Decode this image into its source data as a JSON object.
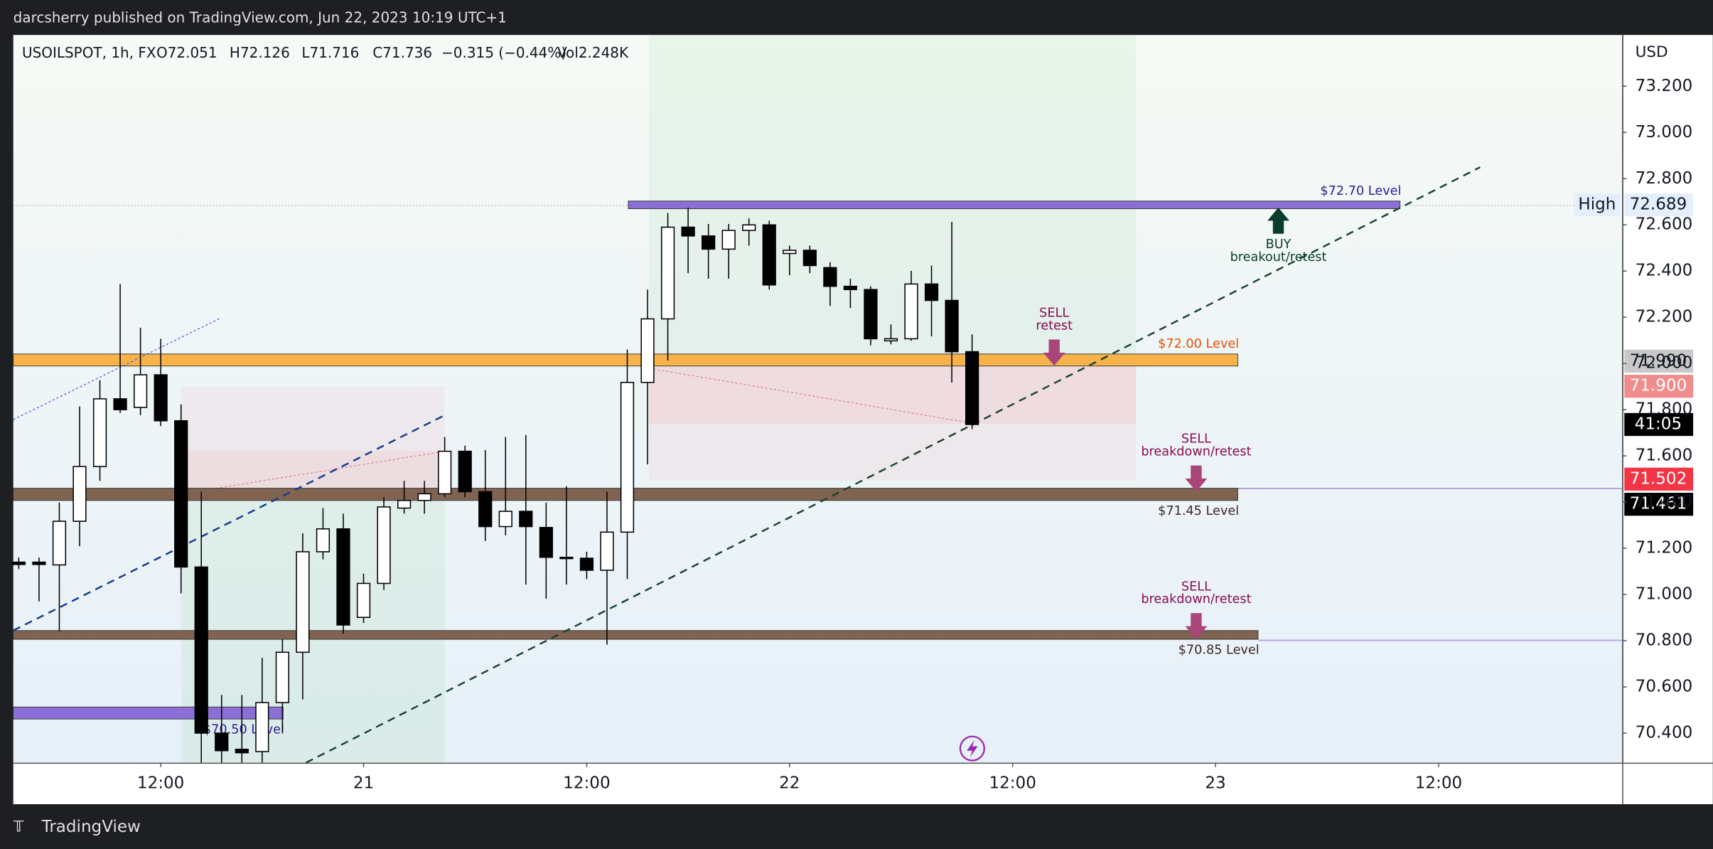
{
  "header": {
    "published": "darcsherry published on TradingView.com, Jun 22, 2023 10:19 UTC+1",
    "brand": "TradingView"
  },
  "chart_data": {
    "type": "candlestick",
    "symbol": "USOILSPOT, 1h, FX",
    "ohlc_legend": [
      "O72.051",
      "H72.126",
      "L71.716",
      "C71.736",
      "−0.315 (−0.44%)",
      "Vol2.248K"
    ],
    "currency": "USD",
    "x": [
      0,
      1,
      2,
      3,
      4,
      5,
      6,
      7,
      8,
      9,
      10,
      11,
      12,
      13,
      14,
      15,
      16,
      17,
      18,
      19,
      20,
      21,
      22,
      23,
      24,
      25,
      26,
      27,
      28,
      29,
      30,
      31,
      32,
      33,
      34,
      35,
      36,
      37,
      38,
      39,
      40,
      41,
      42,
      43,
      44,
      45,
      46,
      47
    ],
    "open": [
      71.14,
      71.14,
      71.128,
      71.317,
      71.554,
      71.847,
      71.81,
      71.951,
      71.752,
      71.119,
      70.4,
      70.33,
      70.32,
      70.532,
      70.75,
      71.185,
      71.284,
      70.901,
      71.048,
      71.374,
      71.407,
      71.436,
      71.62,
      71.445,
      71.294,
      71.36,
      71.29,
      71.161,
      71.157,
      71.105,
      71.27,
      71.918,
      72.193,
      72.59,
      72.552,
      72.495,
      72.576,
      72.6,
      72.476,
      72.49,
      72.415,
      72.334,
      72.32,
      72.098,
      72.107,
      72.344,
      72.273,
      72.051
    ],
    "high": [
      71.16,
      71.16,
      71.398,
      71.814,
      71.928,
      72.344,
      72.155,
      72.107,
      71.823,
      71.445,
      70.565,
      70.565,
      70.726,
      70.806,
      71.265,
      71.374,
      71.35,
      71.09,
      71.421,
      71.492,
      71.492,
      71.682,
      71.644,
      71.625,
      71.682,
      71.691,
      71.398,
      71.469,
      71.185,
      71.445,
      72.06,
      72.32,
      72.651,
      72.675,
      72.604,
      72.604,
      72.628,
      72.618,
      72.51,
      72.51,
      72.438,
      72.367,
      72.334,
      72.169,
      72.401,
      72.424,
      72.613,
      72.126
    ],
    "low": [
      71.11,
      70.97,
      70.84,
      71.209,
      71.492,
      71.786,
      71.776,
      71.729,
      71.005,
      70.272,
      70.272,
      70.272,
      70.272,
      70.404,
      70.546,
      71.152,
      70.83,
      70.877,
      71.02,
      71.35,
      71.35,
      71.421,
      71.421,
      71.232,
      71.256,
      71.043,
      70.982,
      71.043,
      71.067,
      70.783,
      71.067,
      71.563,
      72.013,
      72.391,
      72.367,
      72.367,
      72.51,
      72.32,
      72.382,
      72.391,
      72.249,
      72.24,
      72.079,
      72.083,
      72.098,
      72.117,
      71.918,
      71.716
    ],
    "close": [
      71.13,
      71.13,
      71.317,
      71.554,
      71.847,
      71.8,
      71.951,
      71.752,
      71.119,
      70.4,
      70.324,
      70.315,
      70.532,
      70.75,
      71.185,
      71.284,
      70.868,
      71.048,
      71.379,
      71.407,
      71.436,
      71.62,
      71.445,
      71.294,
      71.36,
      71.294,
      71.161,
      71.157,
      71.105,
      71.27,
      71.918,
      72.193,
      72.59,
      72.552,
      72.495,
      72.576,
      72.6,
      72.34,
      72.49,
      72.424,
      72.334,
      72.32,
      72.107,
      72.107,
      72.344,
      72.273,
      72.051,
      71.736
    ],
    "up_color": "#ffffff",
    "down_color": "#000000",
    "xlim": [
      -0.27,
      79.05
    ],
    "xticks": [
      {
        "value": 7,
        "label": "12:00"
      },
      {
        "value": 17,
        "label": "21"
      },
      {
        "value": 28,
        "label": "12:00"
      },
      {
        "value": 38,
        "label": "22"
      },
      {
        "value": 49,
        "label": "12:00"
      },
      {
        "value": 59,
        "label": "23"
      },
      {
        "value": 70,
        "label": "12:00"
      }
    ],
    "ylim": [
      70.272,
      73.422
    ],
    "yticks": [
      {
        "value": 70.4,
        "label": "70.400"
      },
      {
        "value": 70.6,
        "label": "70.600"
      },
      {
        "value": 70.8,
        "label": "70.800"
      },
      {
        "value": 71.0,
        "label": "71.000"
      },
      {
        "value": 71.2,
        "label": "71.200"
      },
      {
        "value": 71.4,
        "label": "71.400"
      },
      {
        "value": 71.6,
        "label": "71.600"
      },
      {
        "value": 71.8,
        "label": "71.800"
      },
      {
        "value": 72.0,
        "label": "72.000"
      },
      {
        "value": 72.2,
        "label": "72.200"
      },
      {
        "value": 72.4,
        "label": "72.400"
      },
      {
        "value": 72.6,
        "label": "72.600"
      },
      {
        "value": 72.8,
        "label": "72.800"
      },
      {
        "value": 73.0,
        "label": "73.000"
      },
      {
        "value": 73.2,
        "label": "73.200"
      }
    ],
    "levels": [
      {
        "label": "$72.70 Level",
        "top": 72.703,
        "bottom": 72.67,
        "from": 30.05,
        "to": 68.1,
        "color": "#8c6fd6",
        "label_color": "#311b92",
        "label_pos": "above"
      },
      {
        "label": "$72.00 Level",
        "top": 72.041,
        "bottom": 71.989,
        "from": -0.27,
        "to": 60.1,
        "color": "#f8b24a",
        "label_color": "#e65100",
        "label_pos": "above"
      },
      {
        "label": "$71.45 Level",
        "top": 71.46,
        "bottom": 71.407,
        "from": -0.27,
        "to": 60.1,
        "color": "#806350",
        "label_color": "#3e2723",
        "label_pos": "below"
      },
      {
        "label": "$70.85 Level",
        "top": 70.844,
        "bottom": 70.806,
        "from": -0.27,
        "to": 61.1,
        "color": "#806350",
        "label_color": "#3e2723",
        "label_pos": "below"
      },
      {
        "label": "$70.50 Level",
        "top": 70.513,
        "bottom": 70.461,
        "from": -0.27,
        "to": 13.03,
        "color": "#8c6fd6",
        "label_color": "#311b92",
        "label_pos": "below"
      }
    ],
    "annotations": [
      {
        "lines": [
          "SELL",
          "retest"
        ],
        "x": 51.05,
        "price": 71.99,
        "direction": "down",
        "color": "#a8467a",
        "text_color": "#880e4f"
      },
      {
        "lines": [
          "SELL",
          "breakdown/retest"
        ],
        "x": 58.05,
        "price": 71.445,
        "direction": "down",
        "color": "#a8467a",
        "text_color": "#880e4f"
      },
      {
        "lines": [
          "SELL",
          "breakdown/retest"
        ],
        "x": 58.05,
        "price": 70.806,
        "direction": "down",
        "color": "#a8467a",
        "text_color": "#880e4f"
      },
      {
        "lines": [
          "BUY",
          "breakout/retest"
        ],
        "x": 62.1,
        "price": 72.675,
        "direction": "up",
        "color": "#0b3d2e",
        "text_color": "#0b3d2e"
      }
    ],
    "price_labels": [
      "High",
      "72.689",
      "71.990",
      "71.900",
      "41:05",
      "71.502",
      "71.461"
    ]
  }
}
